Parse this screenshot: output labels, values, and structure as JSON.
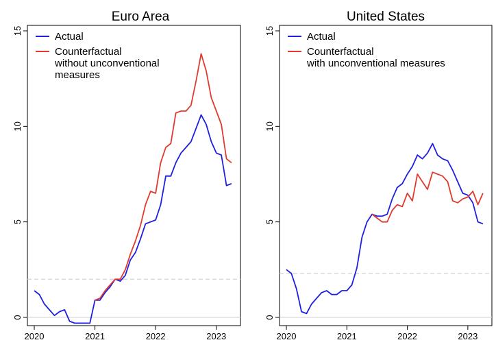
{
  "chart_data": [
    {
      "type": "line",
      "title": "Euro Area",
      "xlabel": "",
      "ylabel": "",
      "xlim": [
        2020.0,
        2023.33
      ],
      "ylim": [
        0,
        15
      ],
      "xticks": [
        2020,
        2021,
        2022,
        2023
      ],
      "xtick_labels": [
        "2020",
        "2021",
        "2022",
        "2023"
      ],
      "yticks": [
        0,
        5,
        10,
        15
      ],
      "ytick_labels": [
        "0",
        "5",
        "10",
        "15"
      ],
      "reference_line": 2.0,
      "legend": {
        "position": "top-left",
        "entries": [
          {
            "label": "Actual",
            "color": "#1f1fe0"
          },
          {
            "label_lines": [
              "Counterfactual",
              "without unconventional",
              "measures"
            ],
            "color": "#e03a2f"
          }
        ]
      },
      "series": [
        {
          "name": "Actual",
          "color": "#1f1fe0",
          "x": [
            2020.0,
            2020.083,
            2020.167,
            2020.25,
            2020.333,
            2020.417,
            2020.5,
            2020.583,
            2020.667,
            2020.75,
            2020.833,
            2020.917,
            2021.0,
            2021.083,
            2021.167,
            2021.25,
            2021.333,
            2021.417,
            2021.5,
            2021.583,
            2021.667,
            2021.75,
            2021.833,
            2021.917,
            2022.0,
            2022.083,
            2022.167,
            2022.25,
            2022.333,
            2022.417,
            2022.5,
            2022.583,
            2022.667,
            2022.75,
            2022.833,
            2022.917,
            2023.0,
            2023.083,
            2023.167,
            2023.25
          ],
          "values": [
            1.4,
            1.2,
            0.7,
            0.4,
            0.1,
            0.3,
            0.4,
            -0.2,
            -0.3,
            -0.3,
            -0.3,
            -0.3,
            0.9,
            0.9,
            1.3,
            1.6,
            2.0,
            1.9,
            2.2,
            3.0,
            3.4,
            4.1,
            4.9,
            5.0,
            5.1,
            5.9,
            7.4,
            7.4,
            8.1,
            8.6,
            8.9,
            9.2,
            9.9,
            10.6,
            10.1,
            9.2,
            8.6,
            8.5,
            6.9,
            7.0
          ]
        },
        {
          "name": "Counterfactual without unconventional measures",
          "color": "#e03a2f",
          "x": [
            2021.0,
            2021.083,
            2021.167,
            2021.25,
            2021.333,
            2021.417,
            2021.5,
            2021.583,
            2021.667,
            2021.75,
            2021.833,
            2021.917,
            2022.0,
            2022.083,
            2022.167,
            2022.25,
            2022.333,
            2022.417,
            2022.5,
            2022.583,
            2022.667,
            2022.75,
            2022.833,
            2022.917,
            2023.0,
            2023.083,
            2023.167,
            2023.25
          ],
          "values": [
            0.9,
            1.0,
            1.4,
            1.7,
            2.0,
            2.0,
            2.5,
            3.3,
            4.0,
            4.8,
            5.9,
            6.6,
            6.5,
            8.1,
            8.9,
            9.1,
            10.7,
            10.8,
            10.8,
            11.1,
            12.4,
            13.8,
            12.9,
            11.5,
            10.8,
            10.1,
            8.3,
            8.1
          ]
        }
      ]
    },
    {
      "type": "line",
      "title": "United States",
      "xlabel": "",
      "ylabel": "",
      "xlim": [
        2020.0,
        2023.33
      ],
      "ylim": [
        0,
        15
      ],
      "xticks": [
        2020,
        2021,
        2022,
        2023
      ],
      "xtick_labels": [
        "2020",
        "2021",
        "2022",
        "2023"
      ],
      "yticks": [
        0,
        5,
        10,
        15
      ],
      "ytick_labels": [
        "0",
        "5",
        "10",
        "15"
      ],
      "reference_line": 2.3,
      "legend": {
        "position": "top-left",
        "entries": [
          {
            "label": "Actual",
            "color": "#1f1fe0"
          },
          {
            "label_lines": [
              "Counterfactual",
              "with unconventional measures"
            ],
            "color": "#e03a2f"
          }
        ]
      },
      "series": [
        {
          "name": "Actual",
          "color": "#1f1fe0",
          "x": [
            2020.0,
            2020.083,
            2020.167,
            2020.25,
            2020.333,
            2020.417,
            2020.5,
            2020.583,
            2020.667,
            2020.75,
            2020.833,
            2020.917,
            2021.0,
            2021.083,
            2021.167,
            2021.25,
            2021.333,
            2021.417,
            2021.5,
            2021.583,
            2021.667,
            2021.75,
            2021.833,
            2021.917,
            2022.0,
            2022.083,
            2022.167,
            2022.25,
            2022.333,
            2022.417,
            2022.5,
            2022.583,
            2022.667,
            2022.75,
            2022.833,
            2022.917,
            2023.0,
            2023.083,
            2023.167,
            2023.25
          ],
          "values": [
            2.5,
            2.3,
            1.5,
            0.3,
            0.2,
            0.7,
            1.0,
            1.3,
            1.4,
            1.2,
            1.2,
            1.4,
            1.4,
            1.7,
            2.6,
            4.2,
            5.0,
            5.4,
            5.3,
            5.3,
            5.4,
            6.2,
            6.8,
            7.0,
            7.5,
            7.9,
            8.5,
            8.3,
            8.6,
            9.1,
            8.5,
            8.3,
            8.2,
            7.7,
            7.1,
            6.5,
            6.4,
            6.0,
            5.0,
            4.9
          ]
        },
        {
          "name": "Counterfactual with unconventional measures",
          "color": "#e03a2f",
          "x": [
            2021.417,
            2021.5,
            2021.583,
            2021.667,
            2021.75,
            2021.833,
            2021.917,
            2022.0,
            2022.083,
            2022.167,
            2022.25,
            2022.333,
            2022.417,
            2022.5,
            2022.583,
            2022.667,
            2022.75,
            2022.833,
            2022.917,
            2023.0,
            2023.083,
            2023.167,
            2023.25
          ],
          "values": [
            5.4,
            5.2,
            5.0,
            5.0,
            5.6,
            5.9,
            5.8,
            6.5,
            6.1,
            7.5,
            7.1,
            6.7,
            7.6,
            7.5,
            7.4,
            7.1,
            6.1,
            6.0,
            6.2,
            6.3,
            6.6,
            5.9,
            6.5
          ]
        }
      ]
    }
  ]
}
